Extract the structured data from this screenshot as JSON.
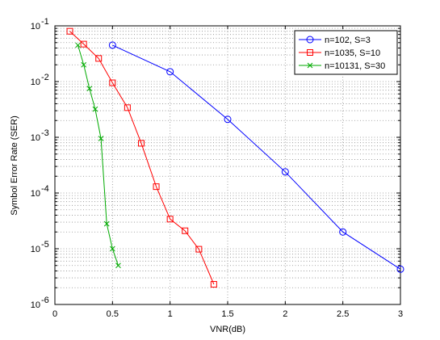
{
  "chart_data": {
    "type": "line",
    "xlabel": "VNR(dB)",
    "ylabel": "Symbol Error Rate (SER)",
    "xlim": [
      0,
      3
    ],
    "ylim": [
      1e-06,
      0.1
    ],
    "yscale": "log",
    "xticks": [
      0,
      0.5,
      1,
      1.5,
      2,
      2.5,
      3
    ],
    "xtick_labels": [
      "0",
      "0.5",
      "1",
      "1.5",
      "2",
      "2.5",
      "3"
    ],
    "yticks": [
      {
        "mantissa": "10",
        "exponent": "-6"
      },
      {
        "mantissa": "10",
        "exponent": "-5"
      },
      {
        "mantissa": "10",
        "exponent": "-4"
      },
      {
        "mantissa": "10",
        "exponent": "-3"
      },
      {
        "mantissa": "10",
        "exponent": "-2"
      },
      {
        "mantissa": "10",
        "exponent": "-1"
      }
    ],
    "grid": "dotted major and minor",
    "legend_position": "top-right",
    "series": [
      {
        "name": "n=102, S=3",
        "color": "#0000ff",
        "marker": "circle",
        "x": [
          0.5,
          1.0,
          1.5,
          2.0,
          2.5,
          3.0
        ],
        "y": [
          0.045,
          0.015,
          0.0021,
          0.00024,
          2e-05,
          4.3e-06
        ]
      },
      {
        "name": "n=1035, S=10",
        "color": "#ff0000",
        "marker": "square",
        "x": [
          0.13,
          0.25,
          0.38,
          0.5,
          0.63,
          0.75,
          0.88,
          1.0,
          1.13,
          1.25,
          1.38
        ],
        "y": [
          0.08,
          0.047,
          0.026,
          0.0095,
          0.0034,
          0.00078,
          0.00013,
          3.4e-05,
          2.1e-05,
          9.8e-06,
          2.3e-06
        ]
      },
      {
        "name": "n=10131, S=30",
        "color": "#00aa00",
        "marker": "x",
        "x": [
          0.2,
          0.25,
          0.3,
          0.35,
          0.4,
          0.45,
          0.5,
          0.55
        ],
        "y": [
          0.045,
          0.02,
          0.0075,
          0.0032,
          0.00095,
          2.8e-05,
          1e-05,
          5e-06
        ]
      }
    ]
  }
}
